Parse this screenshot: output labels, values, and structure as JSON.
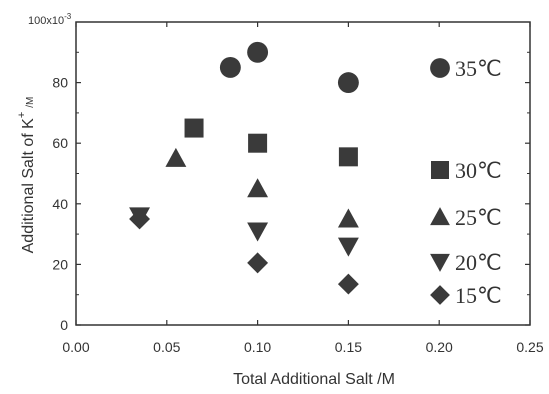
{
  "chart_data": {
    "type": "scatter",
    "xlabel": "Total Additional Salt /M",
    "ylabel_main": "Additional Salt of K",
    "ylabel_sup": "+",
    "ylabel_unit": "/M",
    "y_multiplier_label": "100x10",
    "y_multiplier_exp": "-3",
    "xlim": [
      0.0,
      0.25
    ],
    "ylim": [
      0,
      100
    ],
    "x_ticks": [
      "0.00",
      "0.05",
      "0.10",
      "0.15",
      "0.20",
      "0.25"
    ],
    "y_ticks": [
      "0",
      "20",
      "40",
      "60",
      "80"
    ],
    "grid": false,
    "legend_placement": "right",
    "series": [
      {
        "name": "35℃",
        "marker": "circle",
        "points": [
          [
            0.085,
            85
          ],
          [
            0.1,
            90
          ],
          [
            0.15,
            80
          ]
        ]
      },
      {
        "name": "30℃",
        "marker": "square",
        "points": [
          [
            0.065,
            65
          ],
          [
            0.1,
            60
          ],
          [
            0.15,
            55.5
          ]
        ]
      },
      {
        "name": "25℃",
        "marker": "triangle-up",
        "points": [
          [
            0.055,
            55
          ],
          [
            0.1,
            45
          ],
          [
            0.15,
            35
          ]
        ]
      },
      {
        "name": "20℃",
        "marker": "triangle-down",
        "points": [
          [
            0.035,
            36
          ],
          [
            0.1,
            31
          ],
          [
            0.15,
            26
          ]
        ]
      },
      {
        "name": "15℃",
        "marker": "diamond",
        "points": [
          [
            0.035,
            35
          ],
          [
            0.1,
            20.5
          ],
          [
            0.15,
            13.5
          ]
        ]
      }
    ],
    "marker_color": "#3a3a3a"
  }
}
